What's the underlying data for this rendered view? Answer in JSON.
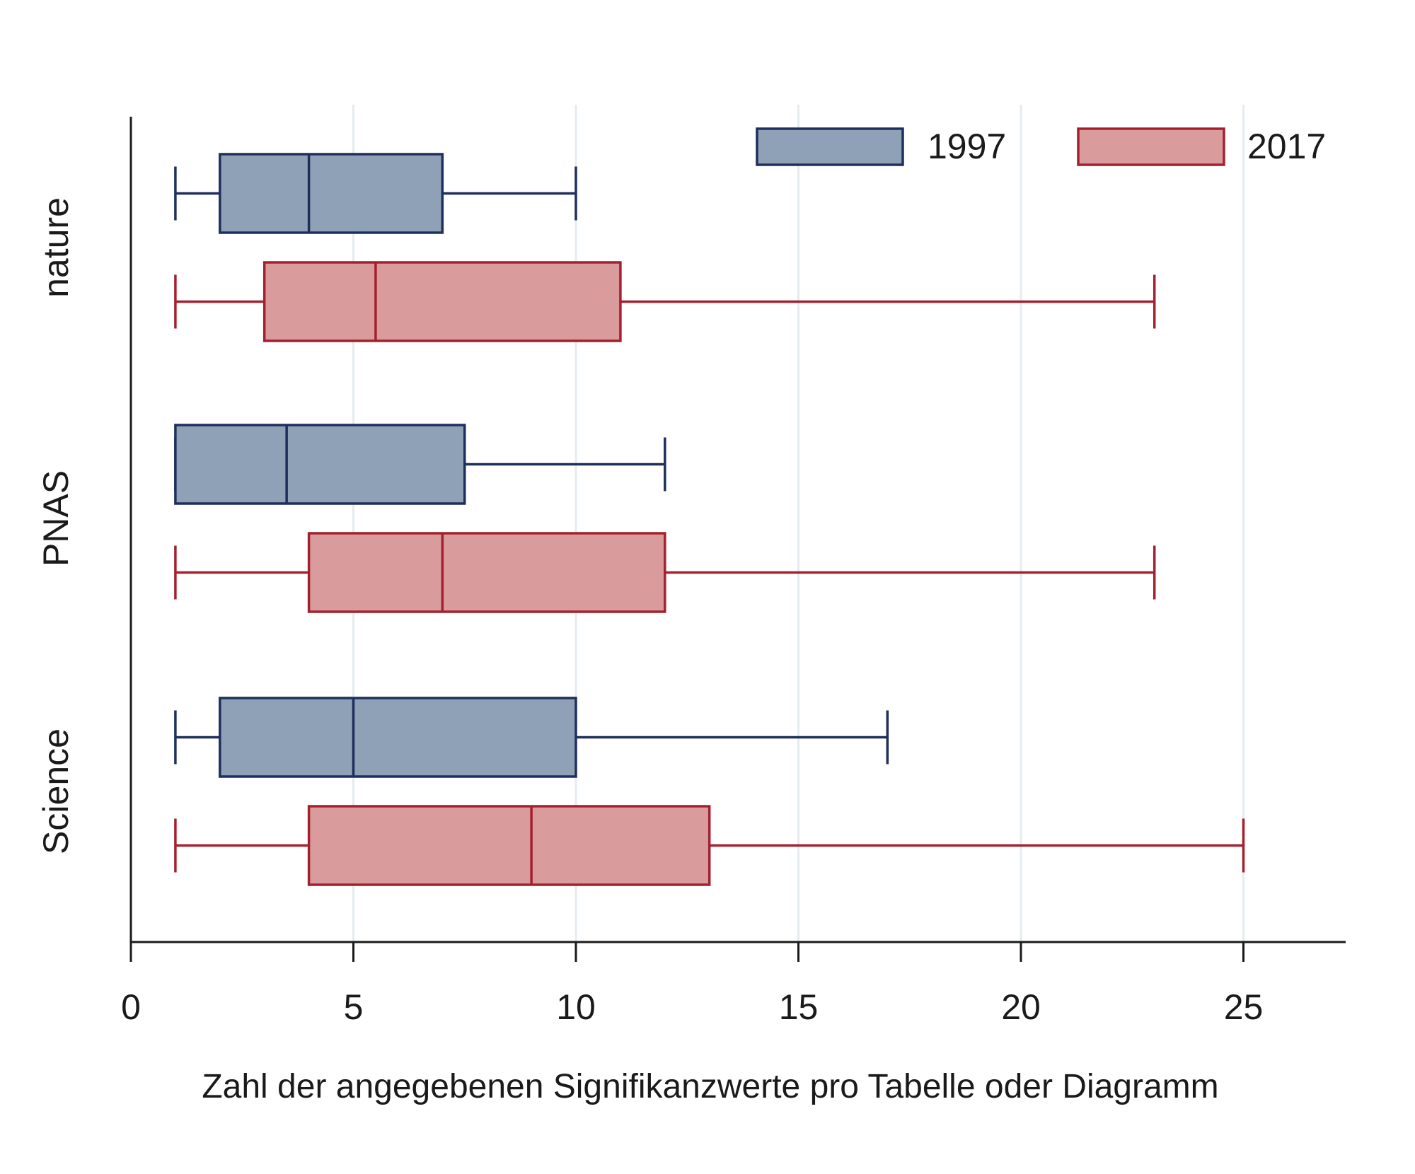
{
  "chart_data": {
    "type": "boxplot",
    "orientation": "horizontal",
    "title": "",
    "xlabel": "Zahl der angegebenen Signifikanzwerte pro Tabelle oder Diagramm",
    "ylabel": "",
    "xlim": [
      0,
      27.3
    ],
    "xticks": [
      0,
      5,
      10,
      15,
      20,
      25
    ],
    "grid": "vertical",
    "legend_position": "top-right",
    "categories": [
      "nature",
      "PNAS",
      "Science"
    ],
    "series": [
      {
        "name": "1997",
        "fill": "#8fa1b6",
        "stroke": "#1f2f5c",
        "boxes": [
          {
            "category": "nature",
            "whisker_low": 1,
            "q1": 2,
            "median": 4,
            "q3": 7,
            "whisker_high": 10
          },
          {
            "category": "PNAS",
            "whisker_low": 1,
            "q1": 1,
            "median": 3.5,
            "q3": 7.5,
            "whisker_high": 12
          },
          {
            "category": "Science",
            "whisker_low": 1,
            "q1": 2,
            "median": 5,
            "q3": 10,
            "whisker_high": 17
          }
        ]
      },
      {
        "name": "2017",
        "fill": "#d99b9b",
        "stroke": "#a4202f",
        "boxes": [
          {
            "category": "nature",
            "whisker_low": 1,
            "q1": 3,
            "median": 5.5,
            "q3": 11,
            "whisker_high": 23
          },
          {
            "category": "PNAS",
            "whisker_low": 1,
            "q1": 4,
            "median": 7,
            "q3": 12,
            "whisker_high": 23
          },
          {
            "category": "Science",
            "whisker_low": 1,
            "q1": 4,
            "median": 9,
            "q3": 13,
            "whisker_high": 25
          }
        ]
      }
    ],
    "colors": {
      "axis": "#1a1a1a",
      "grid": "#e4ecef"
    }
  }
}
